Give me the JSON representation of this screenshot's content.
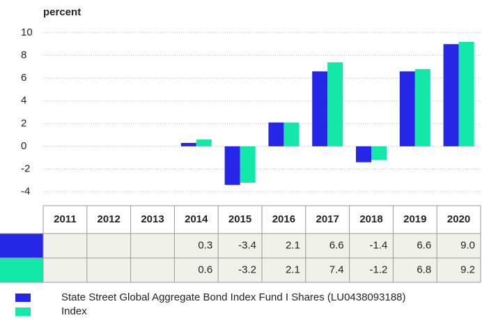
{
  "chart_data": {
    "type": "bar",
    "y_label": "percent",
    "categories": [
      "2011",
      "2012",
      "2013",
      "2014",
      "2015",
      "2016",
      "2017",
      "2018",
      "2019",
      "2020"
    ],
    "series": [
      {
        "name": "State Street Global Aggregate Bond Index Fund I Shares (LU0438093188)",
        "color": "#2626e6",
        "values": [
          null,
          null,
          null,
          0.3,
          -3.4,
          2.1,
          6.6,
          -1.4,
          6.6,
          9.0
        ],
        "value_labels": [
          null,
          null,
          null,
          "0.3",
          "-3.4",
          "2.1",
          "6.6",
          "-1.4",
          "6.6",
          "9.0"
        ]
      },
      {
        "name": "Index",
        "color": "#14e8a8",
        "values": [
          null,
          null,
          null,
          0.6,
          -3.2,
          2.1,
          7.4,
          -1.2,
          6.8,
          9.2
        ]
      }
    ],
    "ylim": [
      -4,
      10
    ],
    "yticks": [
      -4,
      -2,
      0,
      2,
      4,
      6,
      8,
      10
    ],
    "grid": true
  }
}
